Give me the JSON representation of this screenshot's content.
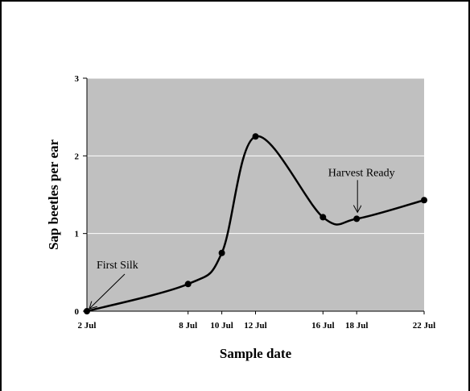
{
  "chart_data": {
    "type": "line",
    "title": "",
    "xlabel": "Sample date",
    "ylabel": "Sap beetles per ear",
    "ylim": [
      0,
      3
    ],
    "yticks": [
      "0",
      "1",
      "2",
      "3"
    ],
    "xlim_days": [
      2,
      22
    ],
    "x_tick_labels": [
      "2 Jul",
      "8 Jul",
      "10 Jul",
      "12 Jul",
      "16 Jul",
      "18 Jul",
      "22 Jul"
    ],
    "x": [
      "2 Jul",
      "8 Jul",
      "10 Jul",
      "12 Jul",
      "16 Jul",
      "18 Jul",
      "22 Jul"
    ],
    "series": [
      {
        "values": [
          0,
          0.35,
          0.75,
          2.25,
          1.21,
          1.19,
          1.43
        ]
      }
    ],
    "smoothed": true,
    "grid": "horizontal",
    "plot_background": "#c0c0c0",
    "line_color": "#000000",
    "annotations": [
      {
        "text": "First Silk",
        "at": "2 Jul"
      },
      {
        "text": "Harvest Ready",
        "at": "18 Jul"
      }
    ]
  }
}
